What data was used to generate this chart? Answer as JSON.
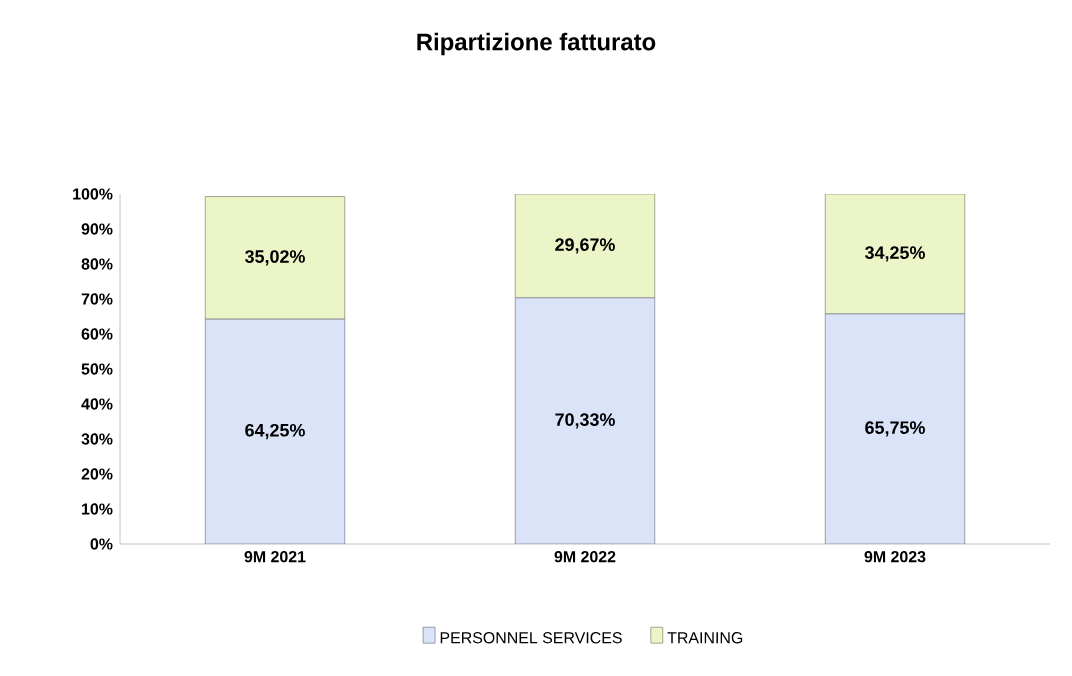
{
  "chart_data": {
    "type": "bar",
    "title": "Ripartizione fatturato",
    "stacked": true,
    "categories": [
      "9M 2021",
      "9M 2022",
      "9M 2023"
    ],
    "series": [
      {
        "name": "PERSONNEL SERVICES",
        "color": "#dae3f8",
        "values": [
          64.25,
          70.33,
          65.75
        ],
        "value_labels": [
          "64,25%",
          "70,33%",
          "65,75%"
        ]
      },
      {
        "name": "TRAINING",
        "color": "#ebf5c8",
        "values": [
          35.02,
          29.67,
          34.25
        ],
        "value_labels": [
          "35,02%",
          "29,67%",
          "34,25%"
        ]
      }
    ],
    "ylim": [
      0,
      100
    ],
    "yticks": [
      {
        "value": 0,
        "label": "0%"
      },
      {
        "value": 10,
        "label": "10%"
      },
      {
        "value": 20,
        "label": "20%"
      },
      {
        "value": 30,
        "label": "30%"
      },
      {
        "value": 40,
        "label": "40%"
      },
      {
        "value": 50,
        "label": "50%"
      },
      {
        "value": 60,
        "label": "60%"
      },
      {
        "value": 70,
        "label": "70%"
      },
      {
        "value": 80,
        "label": "80%"
      },
      {
        "value": 90,
        "label": "90%"
      },
      {
        "value": 100,
        "label": "100%"
      }
    ],
    "legend": "bottom"
  }
}
